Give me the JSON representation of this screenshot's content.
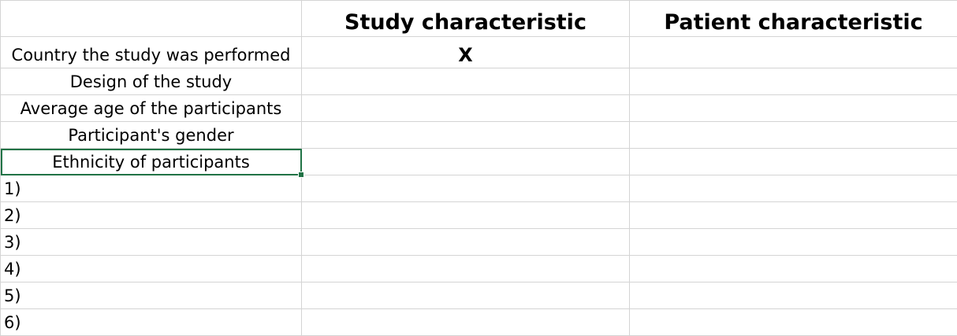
{
  "columns": {
    "blank": "",
    "study": "Study characteristic",
    "patient": "Patient characteristic"
  },
  "rows": [
    {
      "label": "Country the study was performed",
      "study": "X",
      "patient": ""
    },
    {
      "label": "Design of the study",
      "study": "",
      "patient": ""
    },
    {
      "label": "Average age of the participants",
      "study": "",
      "patient": ""
    },
    {
      "label": "Participant's gender",
      "study": "",
      "patient": ""
    },
    {
      "label": "Ethnicity of participants",
      "study": "",
      "patient": ""
    },
    {
      "label": "1)",
      "study": "",
      "patient": ""
    },
    {
      "label": "2)",
      "study": "",
      "patient": ""
    },
    {
      "label": "3)",
      "study": "",
      "patient": ""
    },
    {
      "label": "4)",
      "study": "",
      "patient": ""
    },
    {
      "label": "5)",
      "study": "",
      "patient": ""
    },
    {
      "label": "6)",
      "study": "",
      "patient": ""
    }
  ],
  "selection_color": "#217346",
  "gridline_color": "#d4d4d4"
}
